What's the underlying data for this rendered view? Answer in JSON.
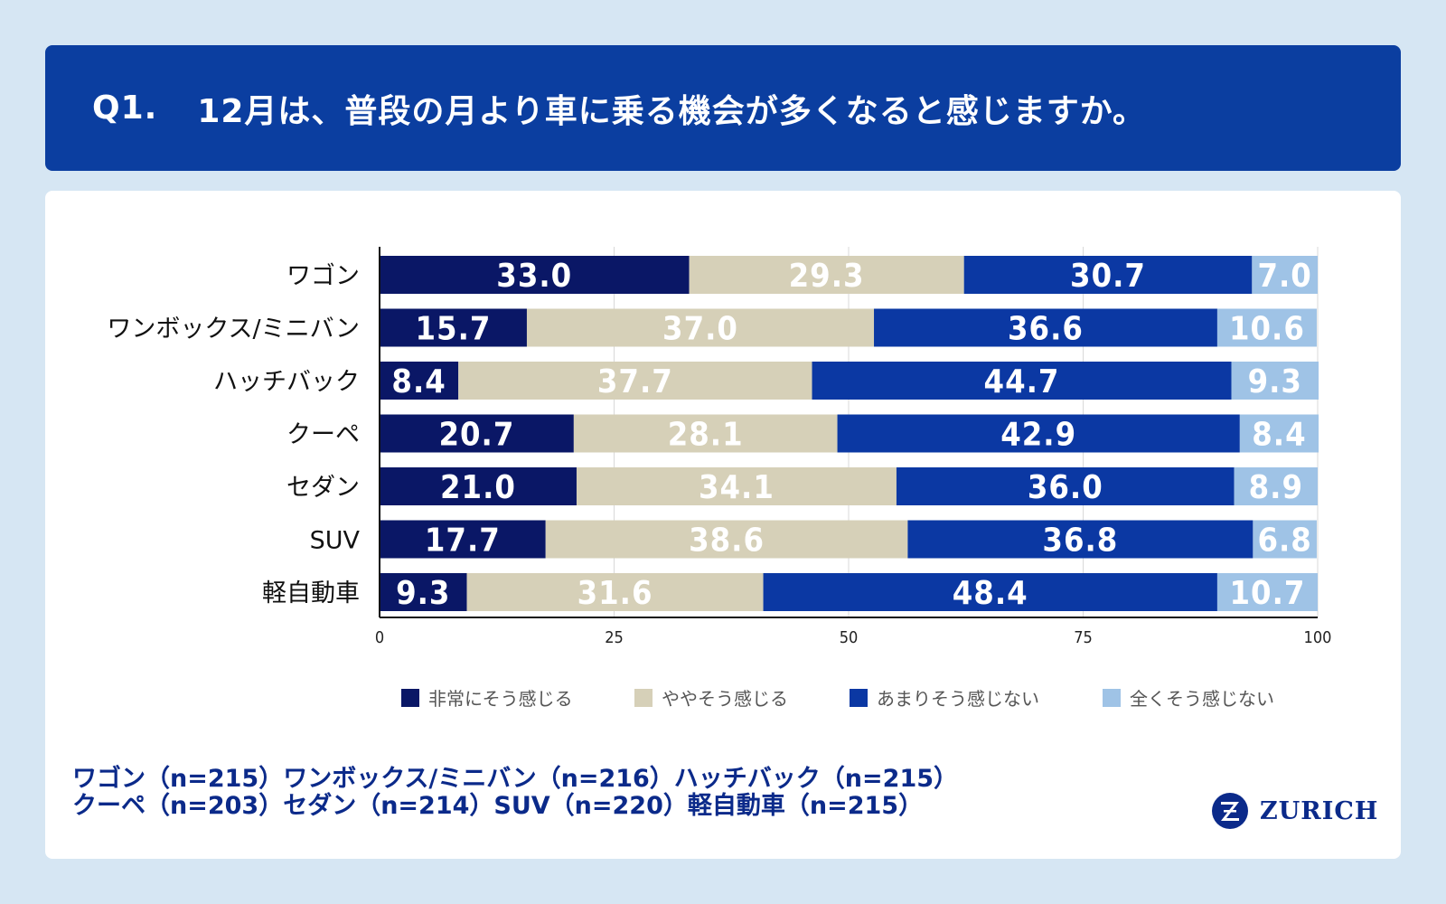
{
  "header": {
    "qnum": "Q1.",
    "question": "12月は、普段の月より車に乗る機会が多くなると感じますか。"
  },
  "colors": {
    "s1": "#0a1766",
    "s2": "#d6d0b8",
    "s3": "#0b38a3",
    "s4": "#9fc3e6",
    "header_bg": "#0b3ea0",
    "footnote": "#0b2a8a"
  },
  "chart_data": {
    "type": "bar",
    "orientation": "horizontal",
    "stacked": true,
    "categories": [
      "ワゴン",
      "ワンボックス/ミニバン",
      "ハッチバック",
      "クーペ",
      "セダン",
      "SUV",
      "軽自動車"
    ],
    "series": [
      {
        "name": "非常にそう感じる",
        "values": [
          33.0,
          15.7,
          8.4,
          20.7,
          21.0,
          17.7,
          9.3
        ]
      },
      {
        "name": "ややそう感じる",
        "values": [
          29.3,
          37.0,
          37.7,
          28.1,
          34.1,
          38.6,
          31.6
        ]
      },
      {
        "name": "あまりそう感じない",
        "values": [
          30.7,
          36.6,
          44.7,
          42.9,
          36.0,
          36.8,
          48.4
        ]
      },
      {
        "name": "全くそう感じない",
        "values": [
          7.0,
          10.6,
          9.3,
          8.4,
          8.9,
          6.8,
          10.7
        ]
      }
    ],
    "xlim": [
      0,
      100
    ],
    "xticks": [
      0,
      25,
      50,
      75,
      100
    ],
    "grid": true,
    "legend": "bottom",
    "title": "",
    "xlabel": "",
    "ylabel": ""
  },
  "footnote": {
    "line1": "ワゴン（n=215）ワンボックス/ミニバン（n=216）ハッチバック（n=215）",
    "line2": "クーペ（n=203）セダン（n=214）SUV（n=220）軽自動車（n=215）"
  },
  "logo": {
    "text": "ZURICH",
    "icon": "zurich-z-icon"
  }
}
